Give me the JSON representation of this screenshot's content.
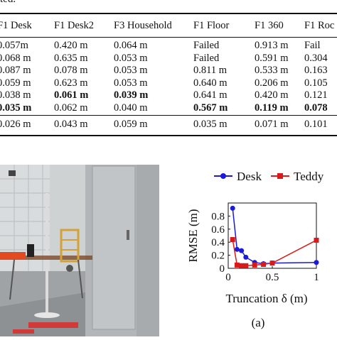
{
  "caption_fragment": "ted.",
  "table": {
    "headers": [
      "F1 Desk",
      "F1 Desk2",
      "F3 Household",
      "F1 Floor",
      "F1 360",
      "F1 Roc"
    ],
    "rows": [
      [
        "0.057m",
        "0.420 m",
        "0.064 m",
        "Failed",
        "0.913 m",
        "Fail"
      ],
      [
        "0.068 m",
        "0.635 m",
        "0.053 m",
        "Failed",
        "0.591 m",
        "0.304"
      ],
      [
        "0.087 m",
        "0.078 m",
        "0.053 m",
        "0.811 m",
        "0.533 m",
        "0.163"
      ],
      [
        "0.059 m",
        "0.623 m",
        "0.053 m",
        "0.640 m",
        "0.206 m",
        "0.105"
      ],
      [
        "0.038 m",
        "0.061 m",
        "0.039 m",
        "0.641 m",
        "0.420 m",
        "0.121"
      ],
      [
        "0.035 m",
        "0.062 m",
        "0.040 m",
        "0.567 m",
        "0.119 m",
        "0.078"
      ]
    ],
    "bold_cells": [
      [
        4,
        1
      ],
      [
        4,
        2
      ],
      [
        5,
        0
      ],
      [
        5,
        3
      ],
      [
        5,
        4
      ],
      [
        5,
        5
      ]
    ],
    "footer_row": [
      "0.026 m",
      "0.043 m",
      "0.059 m",
      "0.035 m",
      "0.071 m",
      "0.101"
    ]
  },
  "figure": {
    "subcaption": "(a)"
  },
  "chart_data": {
    "type": "line",
    "xlabel": "Truncation δ (m)",
    "ylabel": "RMSE (m)",
    "xlim": [
      0,
      1
    ],
    "ylim": [
      0,
      1
    ],
    "xticks": [
      "0",
      "0.5",
      "1"
    ],
    "yticks": [
      "0",
      "0.2",
      "0.4",
      "0.6",
      "0.8"
    ],
    "legend_position": "top",
    "series": [
      {
        "name": "Desk",
        "color": "#1a1adb",
        "marker": "circle",
        "x": [
          0.05,
          0.1,
          0.15,
          0.2,
          0.3,
          0.4,
          0.5,
          1.0
        ],
        "y": [
          0.92,
          0.29,
          0.27,
          0.17,
          0.09,
          0.07,
          0.08,
          0.09
        ]
      },
      {
        "name": "Teddy",
        "color": "#d91a1a",
        "marker": "square",
        "x": [
          0.05,
          0.1,
          0.15,
          0.2,
          0.3,
          0.4,
          0.5,
          1.0
        ],
        "y": [
          0.44,
          0.05,
          0.04,
          0.04,
          0.05,
          0.06,
          0.08,
          0.43
        ]
      }
    ]
  }
}
